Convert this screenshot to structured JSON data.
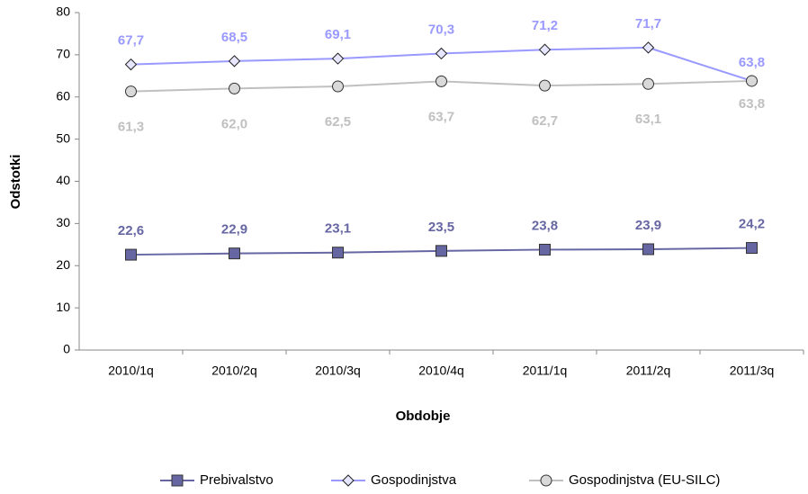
{
  "chart_data": {
    "type": "line",
    "x_label": "Obdobje",
    "y_label": "Odstotki",
    "categories": [
      "2010/1q",
      "2010/2q",
      "2010/3q",
      "2010/4q",
      "2011/1q",
      "2011/2q",
      "2011/3q"
    ],
    "ylim": [
      0,
      80
    ],
    "yticks": [
      0,
      10,
      20,
      30,
      40,
      50,
      60,
      70,
      80
    ],
    "legend": "bottom",
    "series": [
      {
        "name": "Prebivalstvo",
        "color": "#6666a3",
        "marker": "square",
        "values": [
          22.6,
          22.9,
          23.1,
          23.5,
          23.8,
          23.9,
          24.2
        ],
        "value_labels": [
          "22,6",
          "22,9",
          "23,1",
          "23,5",
          "23,8",
          "23,9",
          "24,2"
        ]
      },
      {
        "name": "Gospodinjstva",
        "color": "#9999ff",
        "marker": "diamond",
        "values": [
          67.7,
          68.5,
          69.1,
          70.3,
          71.2,
          71.7,
          63.8
        ],
        "value_labels": [
          "67,7",
          "68,5",
          "69,1",
          "70,3",
          "71,2",
          "71,7",
          "63,8"
        ]
      },
      {
        "name": "Gospodinjstva (EU-SILC)",
        "color": "#c0c0c0",
        "marker": "circle",
        "values": [
          61.3,
          62.0,
          62.5,
          63.7,
          62.7,
          63.1,
          63.8
        ],
        "value_labels": [
          "61,3",
          "62,0",
          "62,5",
          "63,7",
          "62,7",
          "63,1",
          "63,8"
        ]
      }
    ]
  }
}
